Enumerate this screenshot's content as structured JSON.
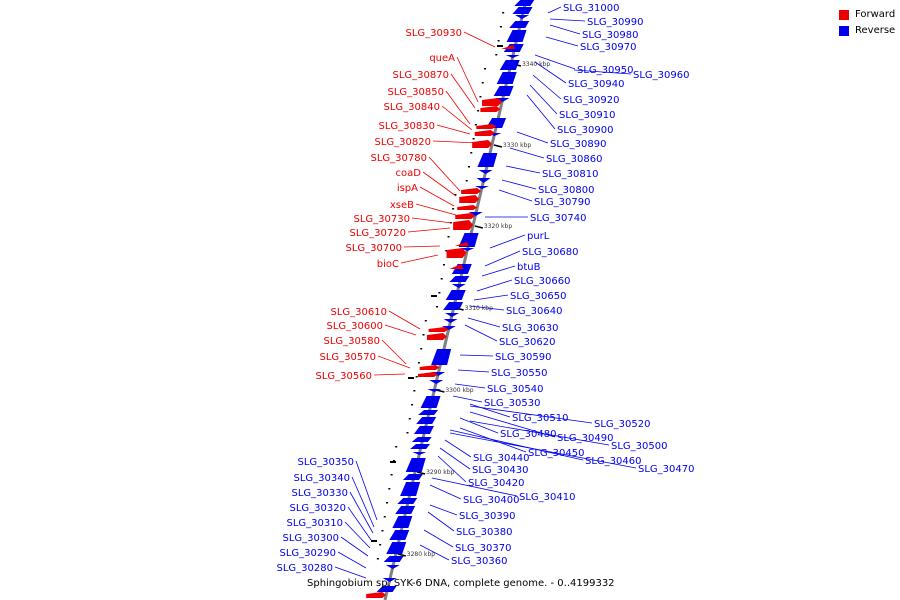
{
  "caption": "Sphingobium sp. SYK-6 DNA, complete genome. - 0..4199332",
  "legend": [
    {
      "label": "Forward",
      "color": "#ee0000"
    },
    {
      "label": "Reverse",
      "color": "#0000ee"
    }
  ],
  "axis_ticks": [
    "3340 kbp",
    "3330 kbp",
    "3320 kbp",
    "3310 kbp",
    "3300 kbp",
    "3290 kbp",
    "3280 kbp"
  ],
  "forward_genes": [
    "SLG_30930",
    "queA",
    "SLG_30870",
    "SLG_30850",
    "SLG_30840",
    "SLG_30830",
    "SLG_30820",
    "SLG_30780",
    "coaD",
    "ispA",
    "xseB",
    "SLG_30730",
    "SLG_30720",
    "SLG_30700",
    "bioC",
    "SLG_30610",
    "SLG_30600",
    "SLG_30580",
    "SLG_30570",
    "SLG_30560"
  ],
  "reverse_genes": [
    "SLG_31000",
    "SLG_30990",
    "SLG_30980",
    "SLG_30970",
    "SLG_30950",
    "SLG_30960",
    "SLG_30940",
    "SLG_30920",
    "SLG_30910",
    "SLG_30900",
    "SLG_30890",
    "SLG_30860",
    "SLG_30810",
    "SLG_30800",
    "SLG_30790",
    "SLG_30740",
    "purL",
    "SLG_30680",
    "btuB",
    "SLG_30660",
    "SLG_30650",
    "SLG_30640",
    "SLG_30630",
    "SLG_30620",
    "SLG_30590",
    "SLG_30550",
    "SLG_30540",
    "SLG_30530",
    "SLG_30510",
    "SLG_30520",
    "SLG_30490",
    "SLG_30480",
    "SLG_30500",
    "SLG_30450",
    "SLG_30460",
    "SLG_30470",
    "SLG_30440",
    "SLG_30430",
    "SLG_30420",
    "SLG_30410",
    "SLG_30400",
    "SLG_30390",
    "SLG_30380",
    "SLG_30370",
    "SLG_30360"
  ],
  "reverse_genes_left": [
    "SLG_30350",
    "SLG_30340",
    "SLG_30330",
    "SLG_30320",
    "SLG_30310",
    "SLG_30300",
    "SLG_30290",
    "SLG_30280"
  ]
}
